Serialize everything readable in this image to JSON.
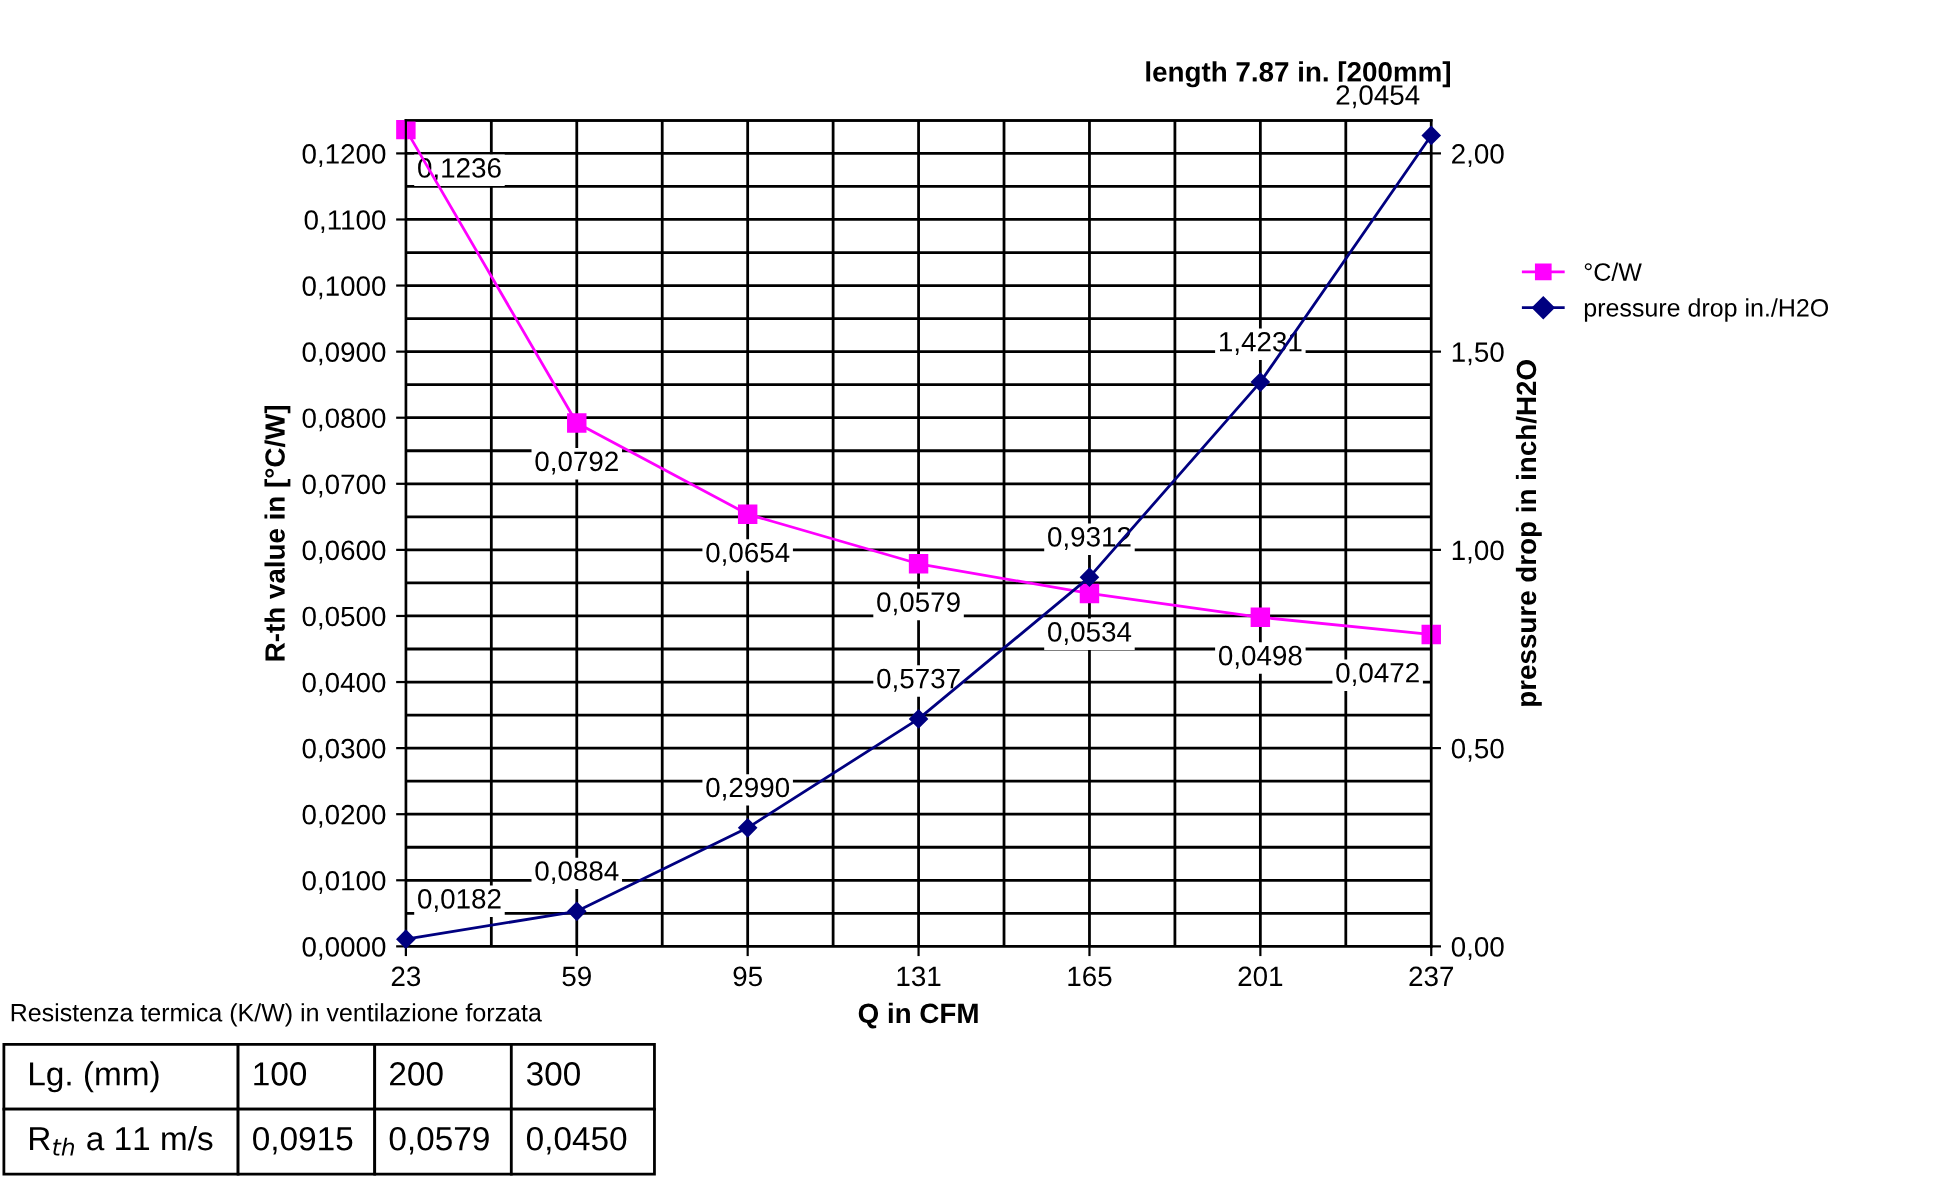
{
  "chart_data": [
    {
      "type": "line",
      "title": "length 7.87 in. [200mm]",
      "xlabel": "Q in CFM",
      "ylabel": "R-th value in [°C/W]",
      "y2label": "pressure drop in inch/H2O",
      "categories": [
        "23",
        "59",
        "95",
        "131",
        "165",
        "201",
        "237"
      ],
      "series": [
        {
          "name": "°C/W",
          "color": "#ff00ff",
          "marker": "square",
          "values": [
            0.1236,
            0.0792,
            0.0654,
            0.0579,
            0.0534,
            0.0498,
            0.0472
          ],
          "value_labels": [
            "0,1236",
            "0,0792",
            "0,0654",
            "0,0579",
            "0,0534",
            "0,0498",
            "0,0472"
          ]
        },
        {
          "name": "pressure drop in./H2O",
          "color": "#000080",
          "marker": "diamond",
          "axis": "y2",
          "values": [
            0.0182,
            0.0884,
            0.299,
            0.5737,
            0.9312,
            1.4231,
            2.0454
          ],
          "value_labels": [
            "0,0182",
            "0,0884",
            "0,2990",
            "0,5737",
            "0,9312",
            "1,4231",
            "2,0454"
          ]
        }
      ],
      "ylim": [
        0,
        0.125
      ],
      "yticks": [
        {
          "value": 0,
          "label": "0,0000"
        },
        {
          "value": 0.01,
          "label": "0,0100"
        },
        {
          "value": 0.02,
          "label": "0,0200"
        },
        {
          "value": 0.03,
          "label": "0,0300"
        },
        {
          "value": 0.04,
          "label": "0,0400"
        },
        {
          "value": 0.05,
          "label": "0,0500"
        },
        {
          "value": 0.06,
          "label": "0,0600"
        },
        {
          "value": 0.07,
          "label": "0,0700"
        },
        {
          "value": 0.08,
          "label": "0,0800"
        },
        {
          "value": 0.09,
          "label": "0,0900"
        },
        {
          "value": 0.1,
          "label": "0,1000"
        },
        {
          "value": 0.11,
          "label": "0,1100"
        },
        {
          "value": 0.12,
          "label": "0,1200"
        }
      ],
      "y2lim": [
        0,
        2.0833
      ],
      "y2ticks": [
        {
          "value": 0,
          "label": "0,00"
        },
        {
          "value": 0.5,
          "label": "0,50"
        },
        {
          "value": 1,
          "label": "1,00"
        },
        {
          "value": 1.5,
          "label": "1,50"
        },
        {
          "value": 2,
          "label": "2,00"
        }
      ],
      "grid": true,
      "legend": "right",
      "line_style": "solid"
    },
    {
      "type": "other",
      "title": "Resistenza termica (K/W) in ventilazione forzata",
      "annotations": [
        "Lg. (mm)",
        "100",
        "200",
        "300",
        "R$_{th}$ a 11 m/s",
        "0,0915",
        "0,0579",
        "0,0450"
      ]
    }
  ]
}
